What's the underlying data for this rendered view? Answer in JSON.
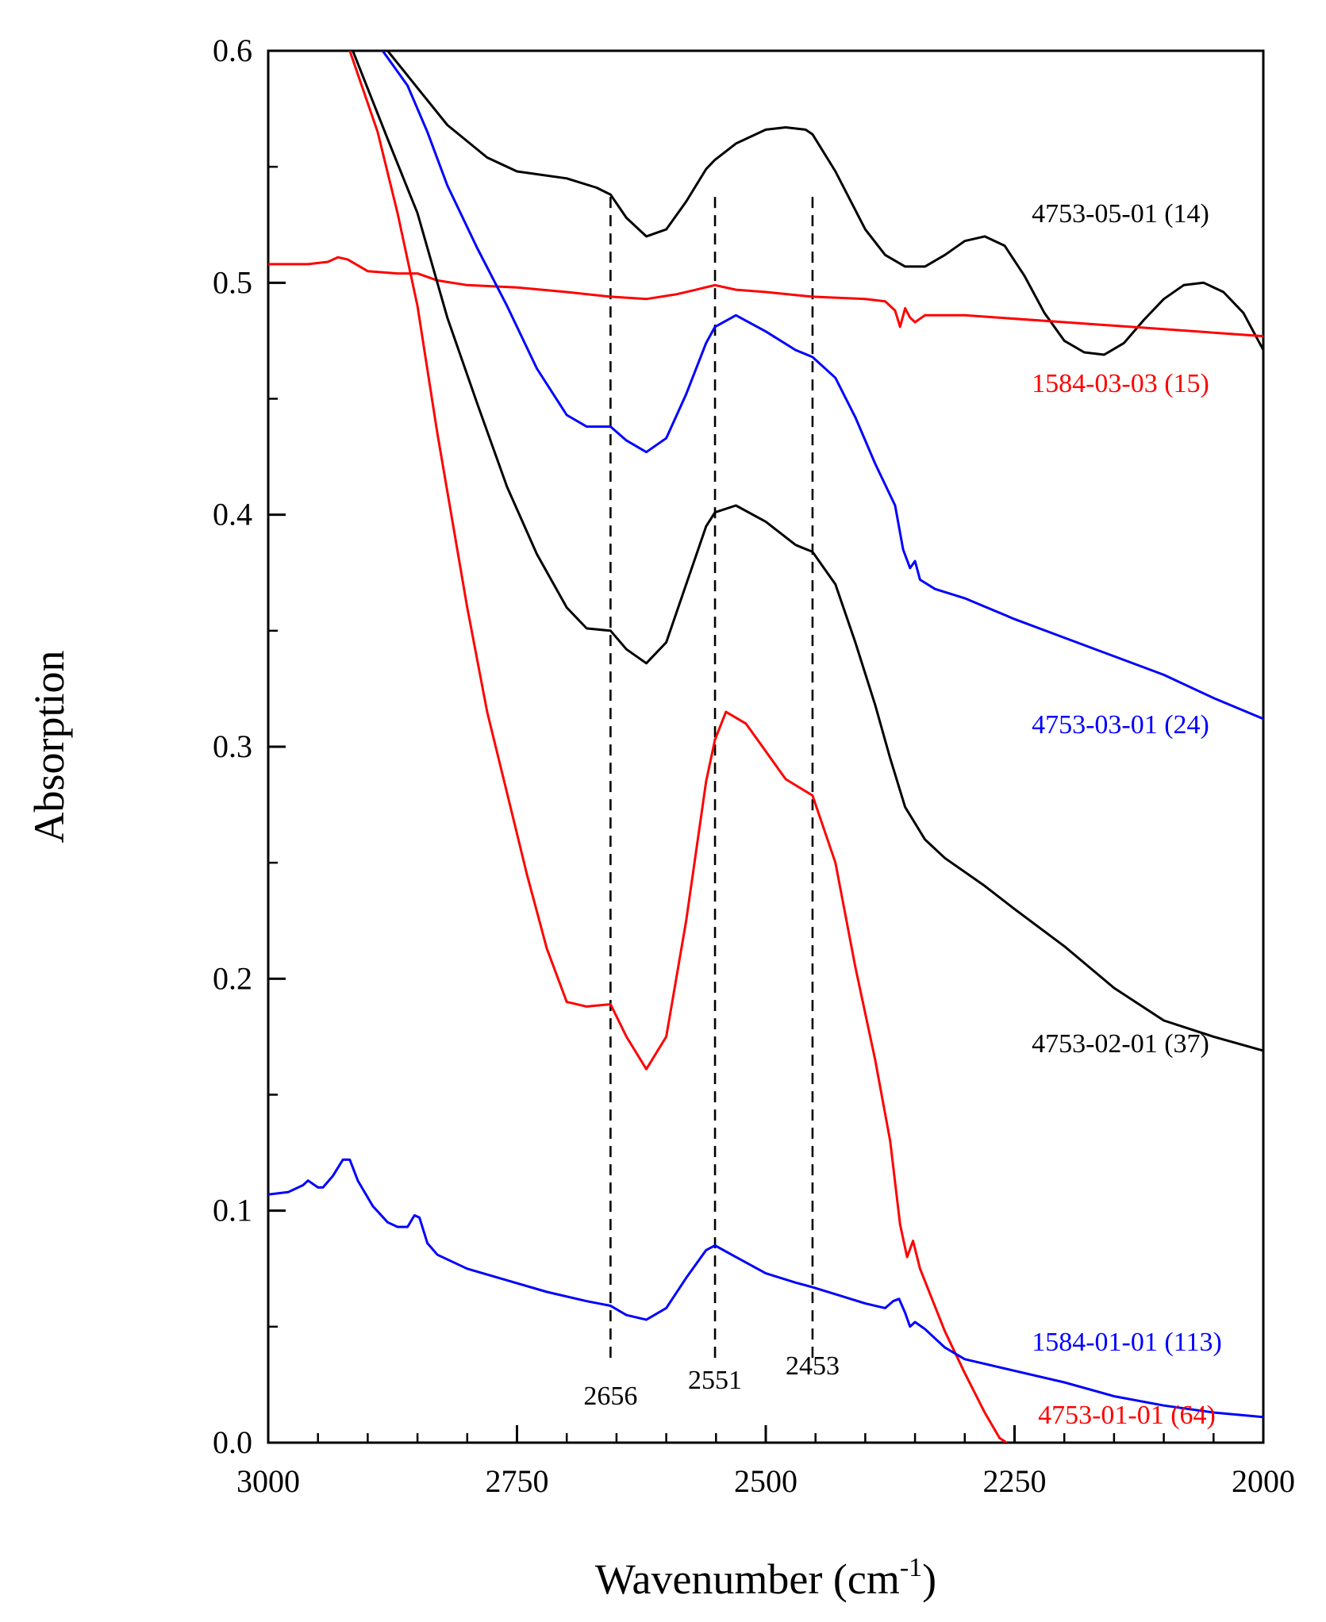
{
  "chart_data": {
    "type": "line",
    "title": "",
    "xlabel": "Wavenumber (cm",
    "xlabel_sup": "-1",
    "xlabel_close": ")",
    "ylabel": "Absorption",
    "xlim": [
      3000,
      2000
    ],
    "ylim": [
      0.0,
      0.6
    ],
    "x_ticks": [
      3000,
      2750,
      2500,
      2250,
      2000
    ],
    "x_tick_labels": [
      "3000",
      "2750",
      "2500",
      "2250",
      "2000"
    ],
    "y_ticks": [
      0.0,
      0.1,
      0.2,
      0.3,
      0.4,
      0.5,
      0.6
    ],
    "y_tick_labels": [
      "0.0",
      "0.1",
      "0.2",
      "0.3",
      "0.4",
      "0.5",
      "0.6"
    ],
    "grid": false,
    "reference_lines": [
      {
        "x": 2656,
        "label": "2656"
      },
      {
        "x": 2551,
        "label": "2551"
      },
      {
        "x": 2453,
        "label": "2453"
      }
    ],
    "series": [
      {
        "name": "4753-05-01 (14)",
        "color": "#000000",
        "points": [
          [
            2902,
            0.6
          ],
          [
            2880,
            0.6
          ],
          [
            2850,
            0.584
          ],
          [
            2820,
            0.568
          ],
          [
            2780,
            0.554
          ],
          [
            2750,
            0.548
          ],
          [
            2700,
            0.545
          ],
          [
            2670,
            0.541
          ],
          [
            2656,
            0.538
          ],
          [
            2640,
            0.528
          ],
          [
            2620,
            0.52
          ],
          [
            2600,
            0.523
          ],
          [
            2580,
            0.535
          ],
          [
            2560,
            0.549
          ],
          [
            2551,
            0.553
          ],
          [
            2530,
            0.56
          ],
          [
            2500,
            0.566
          ],
          [
            2480,
            0.567
          ],
          [
            2460,
            0.566
          ],
          [
            2453,
            0.564
          ],
          [
            2430,
            0.548
          ],
          [
            2400,
            0.523
          ],
          [
            2380,
            0.512
          ],
          [
            2360,
            0.507
          ],
          [
            2340,
            0.507
          ],
          [
            2320,
            0.512
          ],
          [
            2300,
            0.518
          ],
          [
            2280,
            0.52
          ],
          [
            2260,
            0.516
          ],
          [
            2240,
            0.503
          ],
          [
            2220,
            0.487
          ],
          [
            2200,
            0.475
          ],
          [
            2180,
            0.47
          ],
          [
            2160,
            0.469
          ],
          [
            2140,
            0.474
          ],
          [
            2120,
            0.484
          ],
          [
            2100,
            0.493
          ],
          [
            2080,
            0.499
          ],
          [
            2060,
            0.5
          ],
          [
            2040,
            0.496
          ],
          [
            2020,
            0.487
          ],
          [
            2000,
            0.471
          ]
        ]
      },
      {
        "name": "1584-03-03 (15)",
        "color": "#ff0000",
        "points": [
          [
            3000,
            0.508
          ],
          [
            2960,
            0.508
          ],
          [
            2940,
            0.509
          ],
          [
            2930,
            0.511
          ],
          [
            2920,
            0.51
          ],
          [
            2900,
            0.505
          ],
          [
            2870,
            0.504
          ],
          [
            2850,
            0.504
          ],
          [
            2830,
            0.501
          ],
          [
            2800,
            0.499
          ],
          [
            2750,
            0.498
          ],
          [
            2700,
            0.496
          ],
          [
            2656,
            0.494
          ],
          [
            2620,
            0.493
          ],
          [
            2590,
            0.495
          ],
          [
            2570,
            0.497
          ],
          [
            2551,
            0.499
          ],
          [
            2530,
            0.497
          ],
          [
            2500,
            0.496
          ],
          [
            2453,
            0.494
          ],
          [
            2400,
            0.493
          ],
          [
            2380,
            0.492
          ],
          [
            2370,
            0.488
          ],
          [
            2365,
            0.481
          ],
          [
            2360,
            0.489
          ],
          [
            2355,
            0.485
          ],
          [
            2350,
            0.483
          ],
          [
            2340,
            0.486
          ],
          [
            2300,
            0.486
          ],
          [
            2200,
            0.483
          ],
          [
            2100,
            0.48
          ],
          [
            2000,
            0.477
          ]
        ]
      },
      {
        "name": "4753-03-01 (24)",
        "color": "#0000ff",
        "points": [
          [
            2885,
            0.6
          ],
          [
            2860,
            0.585
          ],
          [
            2840,
            0.565
          ],
          [
            2820,
            0.542
          ],
          [
            2790,
            0.515
          ],
          [
            2760,
            0.49
          ],
          [
            2730,
            0.463
          ],
          [
            2700,
            0.443
          ],
          [
            2680,
            0.438
          ],
          [
            2656,
            0.438
          ],
          [
            2640,
            0.432
          ],
          [
            2620,
            0.427
          ],
          [
            2600,
            0.433
          ],
          [
            2580,
            0.452
          ],
          [
            2560,
            0.474
          ],
          [
            2551,
            0.481
          ],
          [
            2530,
            0.486
          ],
          [
            2500,
            0.479
          ],
          [
            2470,
            0.471
          ],
          [
            2453,
            0.468
          ],
          [
            2430,
            0.459
          ],
          [
            2410,
            0.442
          ],
          [
            2390,
            0.422
          ],
          [
            2370,
            0.404
          ],
          [
            2362,
            0.385
          ],
          [
            2355,
            0.377
          ],
          [
            2350,
            0.38
          ],
          [
            2345,
            0.372
          ],
          [
            2330,
            0.368
          ],
          [
            2300,
            0.364
          ],
          [
            2250,
            0.355
          ],
          [
            2200,
            0.347
          ],
          [
            2150,
            0.339
          ],
          [
            2100,
            0.331
          ],
          [
            2050,
            0.321
          ],
          [
            2000,
            0.312
          ]
        ]
      },
      {
        "name": "4753-02-01 (37)",
        "color": "#000000",
        "points": [
          [
            2915,
            0.6
          ],
          [
            2880,
            0.562
          ],
          [
            2850,
            0.53
          ],
          [
            2820,
            0.485
          ],
          [
            2790,
            0.448
          ],
          [
            2760,
            0.412
          ],
          [
            2730,
            0.383
          ],
          [
            2700,
            0.36
          ],
          [
            2680,
            0.351
          ],
          [
            2656,
            0.35
          ],
          [
            2640,
            0.342
          ],
          [
            2620,
            0.336
          ],
          [
            2600,
            0.345
          ],
          [
            2580,
            0.37
          ],
          [
            2560,
            0.395
          ],
          [
            2551,
            0.401
          ],
          [
            2530,
            0.404
          ],
          [
            2500,
            0.397
          ],
          [
            2470,
            0.387
          ],
          [
            2453,
            0.384
          ],
          [
            2430,
            0.37
          ],
          [
            2410,
            0.345
          ],
          [
            2390,
            0.318
          ],
          [
            2375,
            0.295
          ],
          [
            2360,
            0.274
          ],
          [
            2340,
            0.26
          ],
          [
            2320,
            0.252
          ],
          [
            2280,
            0.24
          ],
          [
            2250,
            0.23
          ],
          [
            2200,
            0.214
          ],
          [
            2150,
            0.196
          ],
          [
            2100,
            0.182
          ],
          [
            2050,
            0.175
          ],
          [
            2000,
            0.169
          ]
        ]
      },
      {
        "name": "4753-01-01 (64)",
        "color": "#ff0000",
        "points": [
          [
            2918,
            0.6
          ],
          [
            2890,
            0.565
          ],
          [
            2870,
            0.53
          ],
          [
            2850,
            0.49
          ],
          [
            2830,
            0.435
          ],
          [
            2800,
            0.36
          ],
          [
            2780,
            0.315
          ],
          [
            2760,
            0.28
          ],
          [
            2740,
            0.245
          ],
          [
            2720,
            0.213
          ],
          [
            2700,
            0.19
          ],
          [
            2680,
            0.188
          ],
          [
            2656,
            0.189
          ],
          [
            2640,
            0.175
          ],
          [
            2620,
            0.161
          ],
          [
            2600,
            0.175
          ],
          [
            2580,
            0.225
          ],
          [
            2560,
            0.285
          ],
          [
            2551,
            0.303
          ],
          [
            2540,
            0.315
          ],
          [
            2520,
            0.31
          ],
          [
            2500,
            0.298
          ],
          [
            2480,
            0.286
          ],
          [
            2453,
            0.279
          ],
          [
            2430,
            0.25
          ],
          [
            2410,
            0.205
          ],
          [
            2390,
            0.165
          ],
          [
            2375,
            0.13
          ],
          [
            2365,
            0.094
          ],
          [
            2358,
            0.08
          ],
          [
            2352,
            0.087
          ],
          [
            2345,
            0.075
          ],
          [
            2320,
            0.048
          ],
          [
            2300,
            0.03
          ],
          [
            2280,
            0.013
          ],
          [
            2265,
            0.002
          ],
          [
            2258,
            0.0
          ]
        ]
      },
      {
        "name": "1584-01-01 (113)",
        "color": "#0000ff",
        "points": [
          [
            3000,
            0.107
          ],
          [
            2980,
            0.108
          ],
          [
            2965,
            0.111
          ],
          [
            2960,
            0.113
          ],
          [
            2950,
            0.11
          ],
          [
            2945,
            0.11
          ],
          [
            2935,
            0.115
          ],
          [
            2925,
            0.122
          ],
          [
            2918,
            0.122
          ],
          [
            2910,
            0.113
          ],
          [
            2895,
            0.102
          ],
          [
            2880,
            0.095
          ],
          [
            2870,
            0.093
          ],
          [
            2860,
            0.093
          ],
          [
            2853,
            0.098
          ],
          [
            2848,
            0.097
          ],
          [
            2840,
            0.086
          ],
          [
            2830,
            0.081
          ],
          [
            2800,
            0.075
          ],
          [
            2760,
            0.07
          ],
          [
            2720,
            0.065
          ],
          [
            2680,
            0.061
          ],
          [
            2656,
            0.059
          ],
          [
            2640,
            0.055
          ],
          [
            2620,
            0.053
          ],
          [
            2600,
            0.058
          ],
          [
            2580,
            0.071
          ],
          [
            2560,
            0.083
          ],
          [
            2551,
            0.085
          ],
          [
            2530,
            0.08
          ],
          [
            2500,
            0.073
          ],
          [
            2470,
            0.069
          ],
          [
            2453,
            0.067
          ],
          [
            2430,
            0.064
          ],
          [
            2400,
            0.06
          ],
          [
            2380,
            0.058
          ],
          [
            2372,
            0.061
          ],
          [
            2366,
            0.062
          ],
          [
            2360,
            0.056
          ],
          [
            2355,
            0.05
          ],
          [
            2350,
            0.052
          ],
          [
            2340,
            0.049
          ],
          [
            2320,
            0.041
          ],
          [
            2300,
            0.036
          ],
          [
            2250,
            0.031
          ],
          [
            2200,
            0.026
          ],
          [
            2150,
            0.02
          ],
          [
            2100,
            0.016
          ],
          [
            2050,
            0.013
          ],
          [
            2000,
            0.011
          ]
        ]
      }
    ]
  }
}
